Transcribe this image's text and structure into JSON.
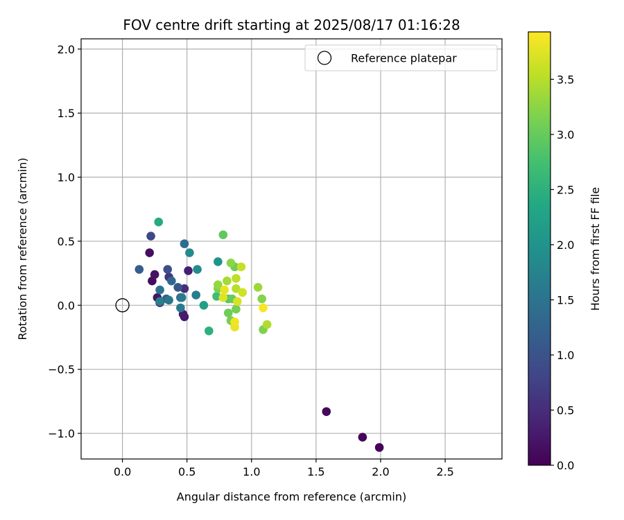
{
  "chart_data": {
    "type": "scatter",
    "title": "FOV centre drift starting at 2025/08/17 01:16:28",
    "xlabel": "Angular distance from reference (arcmin)",
    "ylabel": "Rotation from reference (arcmin)",
    "xlim": [
      -0.32,
      2.94
    ],
    "ylim": [
      -1.2,
      2.08
    ],
    "xticks": [
      0.0,
      0.5,
      1.0,
      1.5,
      2.0,
      2.5
    ],
    "xtick_labels": [
      "0.0",
      "0.5",
      "1.0",
      "1.5",
      "2.0",
      "2.5"
    ],
    "yticks": [
      -1.0,
      -0.5,
      0.0,
      0.5,
      1.0,
      1.5,
      2.0
    ],
    "ytick_labels": [
      "−1.0",
      "−0.5",
      "0.0",
      "0.5",
      "1.0",
      "1.5",
      "2.0"
    ],
    "grid": true,
    "legend": {
      "placement": "top-right",
      "entries": [
        {
          "label": "Reference platepar",
          "marker": "open-circle"
        }
      ]
    },
    "reference_point": {
      "x": 0.0,
      "y": 0.0
    },
    "colorbar": {
      "label": "Hours from first FF file",
      "range": [
        0.0,
        3.93
      ],
      "ticks": [
        0.0,
        0.5,
        1.0,
        1.5,
        2.0,
        2.5,
        3.0,
        3.5
      ],
      "tick_labels": [
        "0.0",
        "0.5",
        "1.0",
        "1.5",
        "2.0",
        "2.5",
        "3.0",
        "3.5"
      ],
      "colormap": "viridis"
    },
    "points": [
      {
        "x": 1.99,
        "y": -1.11,
        "t": 0.02
      },
      {
        "x": 1.86,
        "y": -1.03,
        "t": 0.05
      },
      {
        "x": 1.58,
        "y": -0.83,
        "t": 0.08
      },
      {
        "x": 0.23,
        "y": 0.19,
        "t": 0.12
      },
      {
        "x": 0.21,
        "y": 0.41,
        "t": 0.15
      },
      {
        "x": 0.25,
        "y": 0.24,
        "t": 0.18
      },
      {
        "x": 0.27,
        "y": 0.06,
        "t": 0.22
      },
      {
        "x": 0.48,
        "y": -0.09,
        "t": 0.26
      },
      {
        "x": 0.47,
        "y": -0.07,
        "t": 0.3
      },
      {
        "x": 0.51,
        "y": 0.27,
        "t": 0.34
      },
      {
        "x": 0.29,
        "y": 0.02,
        "t": 0.4
      },
      {
        "x": 0.48,
        "y": 0.13,
        "t": 0.5
      },
      {
        "x": 0.36,
        "y": 0.22,
        "t": 0.6
      },
      {
        "x": 0.22,
        "y": 0.54,
        "t": 0.85
      },
      {
        "x": 0.35,
        "y": 0.28,
        "t": 0.95
      },
      {
        "x": 0.43,
        "y": 0.14,
        "t": 1.05
      },
      {
        "x": 0.13,
        "y": 0.28,
        "t": 1.15
      },
      {
        "x": 0.34,
        "y": 0.05,
        "t": 1.2
      },
      {
        "x": 0.38,
        "y": 0.19,
        "t": 1.3
      },
      {
        "x": 0.45,
        "y": 0.06,
        "t": 1.35
      },
      {
        "x": 0.48,
        "y": 0.48,
        "t": 1.4
      },
      {
        "x": 0.29,
        "y": 0.12,
        "t": 1.5
      },
      {
        "x": 0.36,
        "y": 0.04,
        "t": 1.55
      },
      {
        "x": 0.46,
        "y": 0.06,
        "t": 1.58
      },
      {
        "x": 0.45,
        "y": -0.02,
        "t": 1.6
      },
      {
        "x": 0.57,
        "y": 0.08,
        "t": 1.65
      },
      {
        "x": 0.29,
        "y": 0.03,
        "t": 1.7
      },
      {
        "x": 0.52,
        "y": 0.41,
        "t": 1.85
      },
      {
        "x": 0.58,
        "y": 0.28,
        "t": 1.9
      },
      {
        "x": 0.74,
        "y": 0.34,
        "t": 2.0
      },
      {
        "x": 0.63,
        "y": 0.0,
        "t": 2.2
      },
      {
        "x": 0.28,
        "y": 0.65,
        "t": 2.4
      },
      {
        "x": 0.67,
        "y": -0.2,
        "t": 2.5
      },
      {
        "x": 0.73,
        "y": 0.07,
        "t": 2.7
      },
      {
        "x": 0.82,
        "y": 0.05,
        "t": 2.85
      },
      {
        "x": 0.78,
        "y": 0.55,
        "t": 2.95
      },
      {
        "x": 0.85,
        "y": 0.05,
        "t": 3.0
      },
      {
        "x": 0.82,
        "y": -0.06,
        "t": 3.05
      },
      {
        "x": 0.87,
        "y": 0.3,
        "t": 3.05
      },
      {
        "x": 0.88,
        "y": -0.03,
        "t": 3.1
      },
      {
        "x": 0.84,
        "y": -0.12,
        "t": 3.1
      },
      {
        "x": 0.74,
        "y": 0.13,
        "t": 3.15
      },
      {
        "x": 1.09,
        "y": -0.19,
        "t": 3.15
      },
      {
        "x": 1.08,
        "y": 0.05,
        "t": 3.2
      },
      {
        "x": 0.84,
        "y": 0.33,
        "t": 3.25
      },
      {
        "x": 0.74,
        "y": 0.16,
        "t": 3.3
      },
      {
        "x": 1.05,
        "y": 0.14,
        "t": 3.35
      },
      {
        "x": 0.81,
        "y": 0.19,
        "t": 3.4
      },
      {
        "x": 1.12,
        "y": -0.15,
        "t": 3.45
      },
      {
        "x": 0.88,
        "y": 0.13,
        "t": 3.5
      },
      {
        "x": 0.88,
        "y": 0.21,
        "t": 3.55
      },
      {
        "x": 0.92,
        "y": 0.3,
        "t": 3.6
      },
      {
        "x": 0.93,
        "y": 0.1,
        "t": 3.65
      },
      {
        "x": 0.89,
        "y": 0.03,
        "t": 3.7
      },
      {
        "x": 0.78,
        "y": 0.06,
        "t": 3.75
      },
      {
        "x": 0.79,
        "y": 0.12,
        "t": 3.8
      },
      {
        "x": 0.87,
        "y": -0.17,
        "t": 3.8
      },
      {
        "x": 0.87,
        "y": -0.13,
        "t": 3.85
      },
      {
        "x": 1.09,
        "y": -0.02,
        "t": 3.9
      }
    ]
  }
}
